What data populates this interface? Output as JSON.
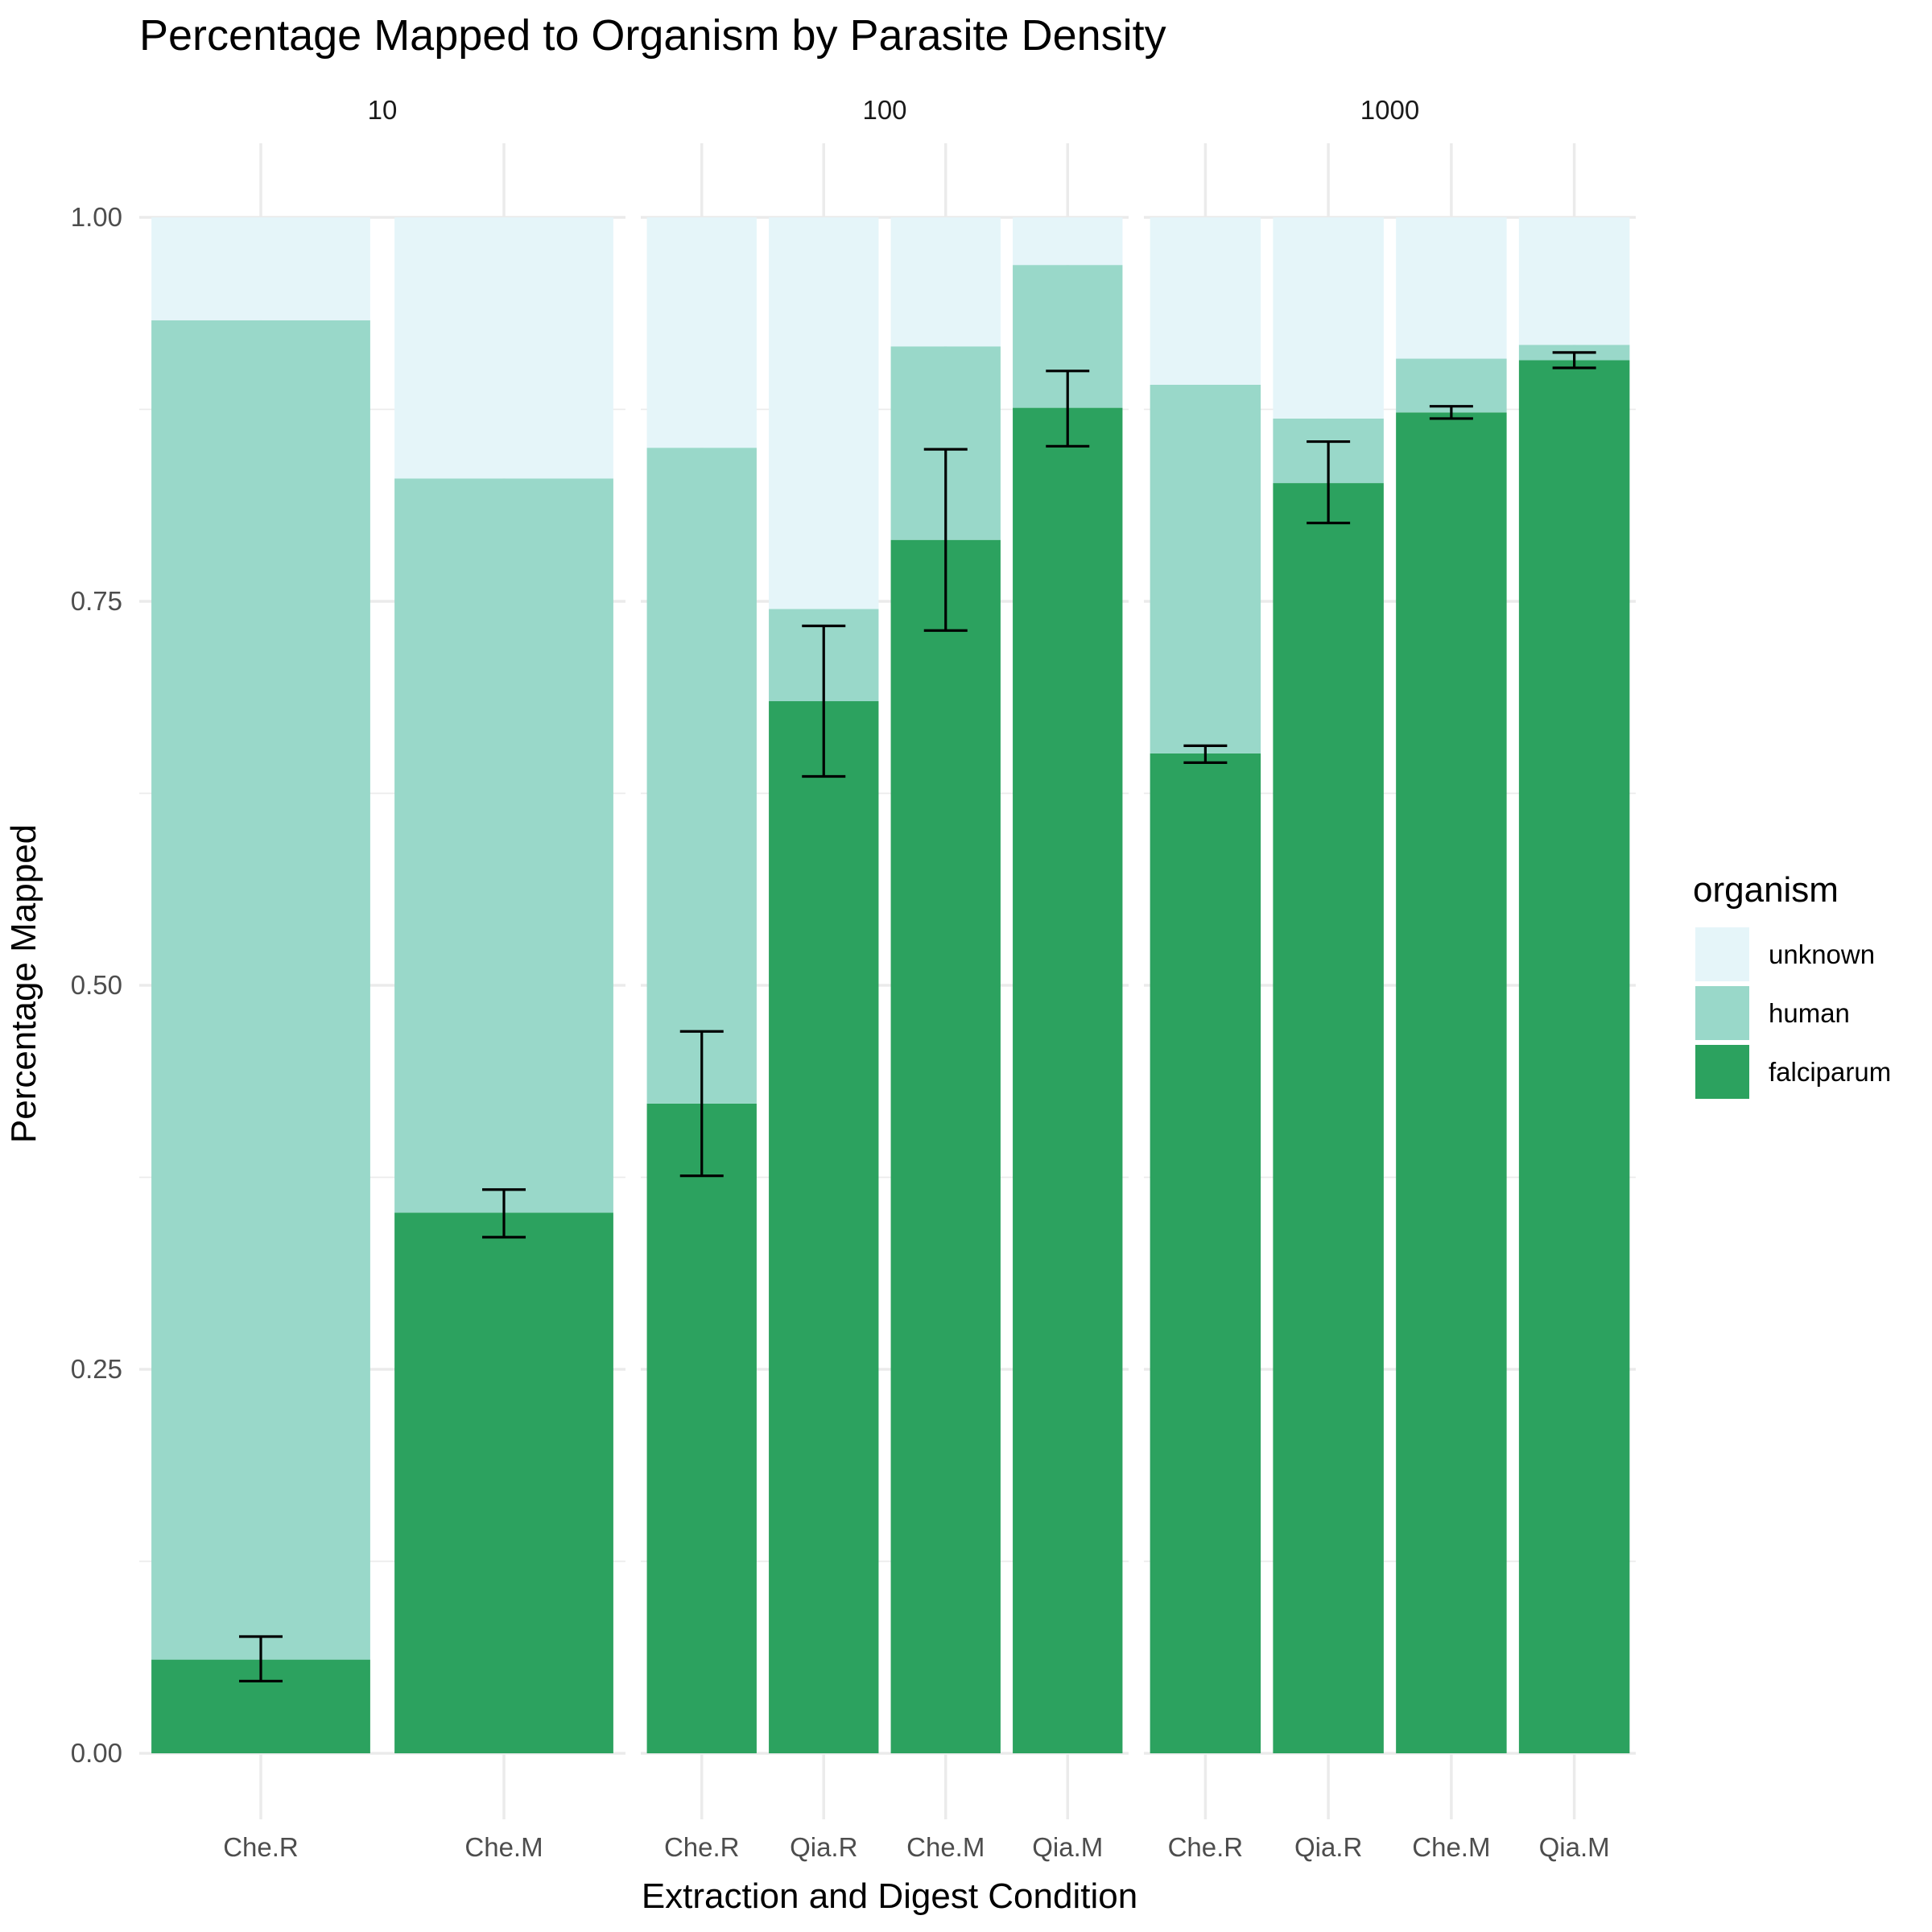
{
  "chart_data": {
    "type": "bar",
    "stacked": true,
    "title": "Percentage Mapped to Organism by Parasite Density",
    "xlabel": "Extraction and Digest Condition",
    "ylabel": "Percentage Mapped",
    "ylim": [
      0,
      1
    ],
    "y_ticks": [
      "0.00",
      "0.25",
      "0.50",
      "0.75",
      "1.00"
    ],
    "y_tick_values": [
      0,
      0.25,
      0.5,
      0.75,
      1.0
    ],
    "grid": true,
    "legend": {
      "title": "organism",
      "position": "right",
      "entries": [
        {
          "name": "unknown",
          "color": "#e5f5f9"
        },
        {
          "name": "human",
          "color": "#99d8c9"
        },
        {
          "name": "falciparum",
          "color": "#2ca25f"
        }
      ]
    },
    "colors": {
      "unknown": "#e5f5f9",
      "human": "#99d8c9",
      "falciparum": "#2ca25f",
      "errorbar": "#000000"
    },
    "facets": [
      {
        "label": "10",
        "categories": [
          "Che.R",
          "Che.M"
        ],
        "series": [
          {
            "name": "falciparum",
            "values": [
              0.061,
              0.352
            ]
          },
          {
            "name": "human",
            "values": [
              0.872,
              0.478
            ]
          },
          {
            "name": "unknown",
            "values": [
              0.067,
              0.17
            ]
          }
        ],
        "falciparum_error": [
          [
            0.047,
            0.076
          ],
          [
            0.336,
            0.367
          ]
        ]
      },
      {
        "label": "100",
        "categories": [
          "Che.R",
          "Qia.R",
          "Che.M",
          "Qia.M"
        ],
        "series": [
          {
            "name": "falciparum",
            "values": [
              0.423,
              0.685,
              0.79,
              0.876
            ]
          },
          {
            "name": "human",
            "values": [
              0.427,
              0.06,
              0.126,
              0.093
            ]
          },
          {
            "name": "unknown",
            "values": [
              0.15,
              0.255,
              0.084,
              0.031
            ]
          }
        ],
        "falciparum_error": [
          [
            0.376,
            0.47
          ],
          [
            0.636,
            0.734
          ],
          [
            0.731,
            0.849
          ],
          [
            0.851,
            0.9
          ]
        ]
      },
      {
        "label": "1000",
        "categories": [
          "Che.R",
          "Qia.R",
          "Che.M",
          "Qia.M"
        ],
        "series": [
          {
            "name": "falciparum",
            "values": [
              0.651,
              0.827,
              0.873,
              0.907
            ]
          },
          {
            "name": "human",
            "values": [
              0.24,
              0.042,
              0.035,
              0.01
            ]
          },
          {
            "name": "unknown",
            "values": [
              0.109,
              0.131,
              0.092,
              0.083
            ]
          }
        ],
        "falciparum_error": [
          [
            0.645,
            0.656
          ],
          [
            0.801,
            0.854
          ],
          [
            0.869,
            0.877
          ],
          [
            0.902,
            0.912
          ]
        ]
      }
    ]
  }
}
